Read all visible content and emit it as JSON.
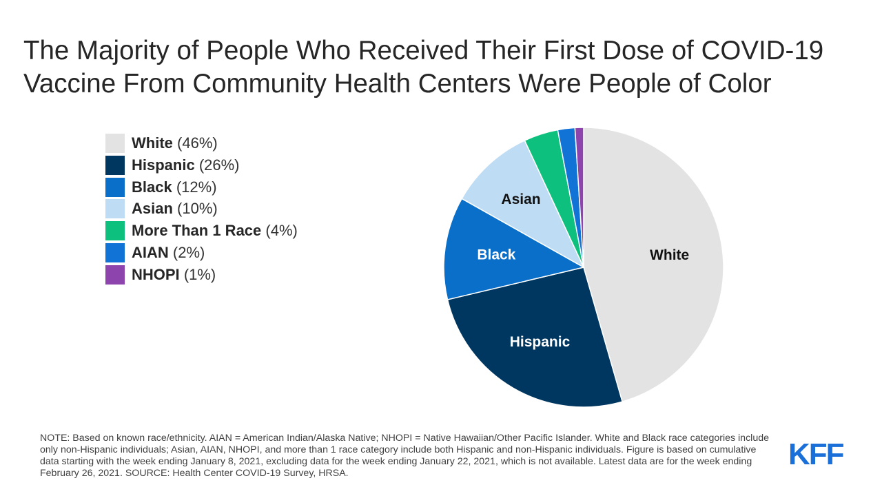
{
  "title": "The Majority of People Who Received Their First Dose of COVID-19 Vaccine From Community Health Centers Were People of Color",
  "legend": [
    {
      "label": "White",
      "pct": "(46%)",
      "color": "#e3e3e3"
    },
    {
      "label": "Hispanic",
      "pct": "(26%)",
      "color": "#003760"
    },
    {
      "label": "Black",
      "pct": "(12%)",
      "color": "#0a6fc9"
    },
    {
      "label": "Asian",
      "pct": "(10%)",
      "color": "#bedcf3"
    },
    {
      "label": "More Than 1 Race",
      "pct": "(4%)",
      "color": "#0ec07d"
    },
    {
      "label": "AIAN",
      "pct": "(2%)",
      "color": "#1173d6"
    },
    {
      "label": "NHOPI",
      "pct": "(1%)",
      "color": "#8e44ad"
    }
  ],
  "chart_data": {
    "type": "pie",
    "title": "The Majority of People Who Received Their First Dose of COVID-19 Vaccine From Community Health Centers Were People of Color",
    "slices": [
      {
        "label": "White",
        "value": 46,
        "color": "#e3e3e3",
        "slice_label": "White",
        "label_color": "#111111"
      },
      {
        "label": "Hispanic",
        "value": 26,
        "color": "#003760",
        "slice_label": "Hispanic",
        "label_color": "#ffffff"
      },
      {
        "label": "Black",
        "value": 12,
        "color": "#0a6fc9",
        "slice_label": "Black",
        "label_color": "#ffffff"
      },
      {
        "label": "Asian",
        "value": 10,
        "color": "#bedcf3",
        "slice_label": "Asian",
        "label_color": "#111111"
      },
      {
        "label": "More Than 1 Race",
        "value": 4,
        "color": "#0ec07d",
        "slice_label": "",
        "label_color": "#111111"
      },
      {
        "label": "AIAN",
        "value": 2,
        "color": "#1173d6",
        "slice_label": "",
        "label_color": "#111111"
      },
      {
        "label": "NHOPI",
        "value": 1,
        "color": "#8e44ad",
        "slice_label": "",
        "label_color": "#111111"
      }
    ],
    "start": "12 o'clock",
    "direction": "clockwise",
    "legend_position": "left"
  },
  "note": "NOTE: Based on known race/ethnicity. AIAN = American Indian/Alaska Native; NHOPI = Native Hawaiian/Other Pacific Islander. White and Black race categories include only non-Hispanic individuals; Asian, AIAN, NHOPI, and more than 1 race category include both Hispanic and non-Hispanic individuals. Figure is based on cumulative data starting with the week ending January 8, 2021, excluding data for the week ending January 22, 2021, which is not available. Latest data are for the week ending February 26, 2021. SOURCE: Health Center COVID-19 Survey, HRSA.",
  "logo": "KFF"
}
